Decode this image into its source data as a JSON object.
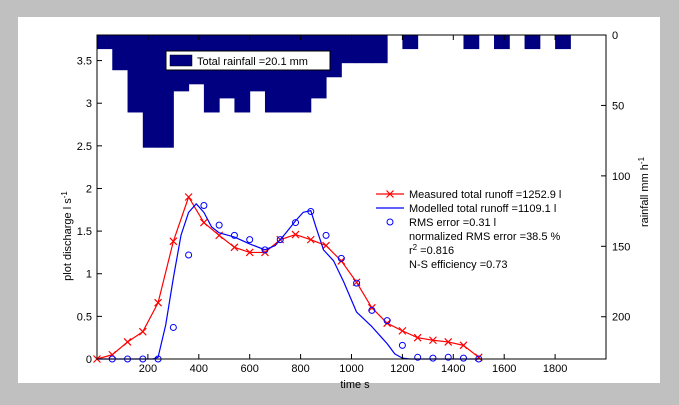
{
  "chart_data": {
    "type": "line",
    "xlabel": "time  s",
    "ylabel": "plot discharge  l s",
    "ylabel_sup": "-1",
    "y2label": "rainfall  mm h",
    "y2label_sup": "-1",
    "xlim": [
      0,
      2000
    ],
    "ylim": [
      0,
      3.8
    ],
    "y2lim": [
      0,
      230
    ],
    "xticks": [
      200,
      400,
      600,
      800,
      1000,
      1200,
      1400,
      1600,
      1800
    ],
    "yticks": [
      0,
      0.5,
      1,
      1.5,
      2,
      2.5,
      3,
      3.5
    ],
    "y2ticks": [
      0,
      50,
      100,
      150,
      200
    ],
    "rainfall": {
      "name": "Total rainfall =20.1 mm",
      "color": "#000080",
      "step_edges": [
        0,
        60,
        120,
        180,
        240,
        300,
        360,
        420,
        480,
        540,
        600,
        660,
        720,
        780,
        840,
        900,
        960,
        1020,
        1080,
        1140,
        1200,
        1260,
        1320,
        1380,
        1440,
        1500,
        1560,
        1620,
        1680,
        1740,
        1800,
        1860
      ],
      "intensity_mm_h": [
        10,
        25,
        55,
        80,
        80,
        40,
        35,
        55,
        45,
        55,
        40,
        55,
        55,
        55,
        45,
        30,
        20,
        20,
        20,
        0,
        10,
        0,
        0,
        0,
        10,
        0,
        10,
        0,
        10,
        0,
        10
      ]
    },
    "series": [
      {
        "name": "Measured total runoff =1252.9 l",
        "color": "#ff0000",
        "marker": "x",
        "x": [
          0,
          60,
          120,
          180,
          240,
          300,
          360,
          420,
          480,
          540,
          600,
          660,
          720,
          780,
          840,
          900,
          960,
          1020,
          1080,
          1140,
          1200,
          1260,
          1320,
          1380,
          1440,
          1500
        ],
        "y": [
          0,
          0.05,
          0.2,
          0.32,
          0.66,
          1.38,
          1.9,
          1.6,
          1.45,
          1.31,
          1.25,
          1.25,
          1.4,
          1.46,
          1.4,
          1.33,
          1.15,
          0.9,
          0.6,
          0.42,
          0.33,
          0.25,
          0.22,
          0.2,
          0.16,
          0.02
        ]
      },
      {
        "name": "Modelled total runoff =1109.1 l",
        "color": "#0000ff",
        "marker": "none",
        "x": [
          0,
          60,
          120,
          180,
          220,
          240,
          270,
          300,
          330,
          360,
          390,
          420,
          450,
          480,
          540,
          600,
          660,
          700,
          740,
          780,
          810,
          840,
          860,
          890,
          930,
          970,
          1020,
          1080,
          1140,
          1170,
          1200,
          1230,
          1260,
          1320,
          1380,
          1440,
          1500
        ],
        "y": [
          0,
          0,
          0,
          0,
          0,
          0.02,
          0.4,
          0.95,
          1.45,
          1.72,
          1.82,
          1.72,
          1.55,
          1.48,
          1.43,
          1.35,
          1.28,
          1.33,
          1.47,
          1.62,
          1.72,
          1.74,
          1.55,
          1.28,
          1.15,
          0.9,
          0.55,
          0.38,
          0.18,
          0.06,
          0.01,
          0,
          0,
          0,
          0,
          0,
          0
        ]
      },
      {
        "name": "RMS error =0.31 l",
        "color": "#0000ff",
        "marker": "o",
        "x": [
          60,
          120,
          180,
          240,
          300,
          360,
          420,
          480,
          540,
          600,
          660,
          720,
          780,
          840,
          900,
          960,
          1020,
          1080,
          1140,
          1200,
          1260,
          1320,
          1380,
          1440,
          1500
        ],
        "y": [
          0,
          0,
          0,
          0,
          0.37,
          1.22,
          1.8,
          1.57,
          1.45,
          1.4,
          1.28,
          1.4,
          1.6,
          1.73,
          1.45,
          1.18,
          0.89,
          0.57,
          0.45,
          0.16,
          0.02,
          0.01,
          0.02,
          0.01,
          0.0
        ]
      }
    ],
    "legend_box_text": "Total rainfall =20.1 mm",
    "legend_extra": [
      "normalized RMS error =38.5 %",
      "r",
      "2",
      " =0.816",
      "N-S efficiency =0.73"
    ],
    "legend_position": "right"
  }
}
